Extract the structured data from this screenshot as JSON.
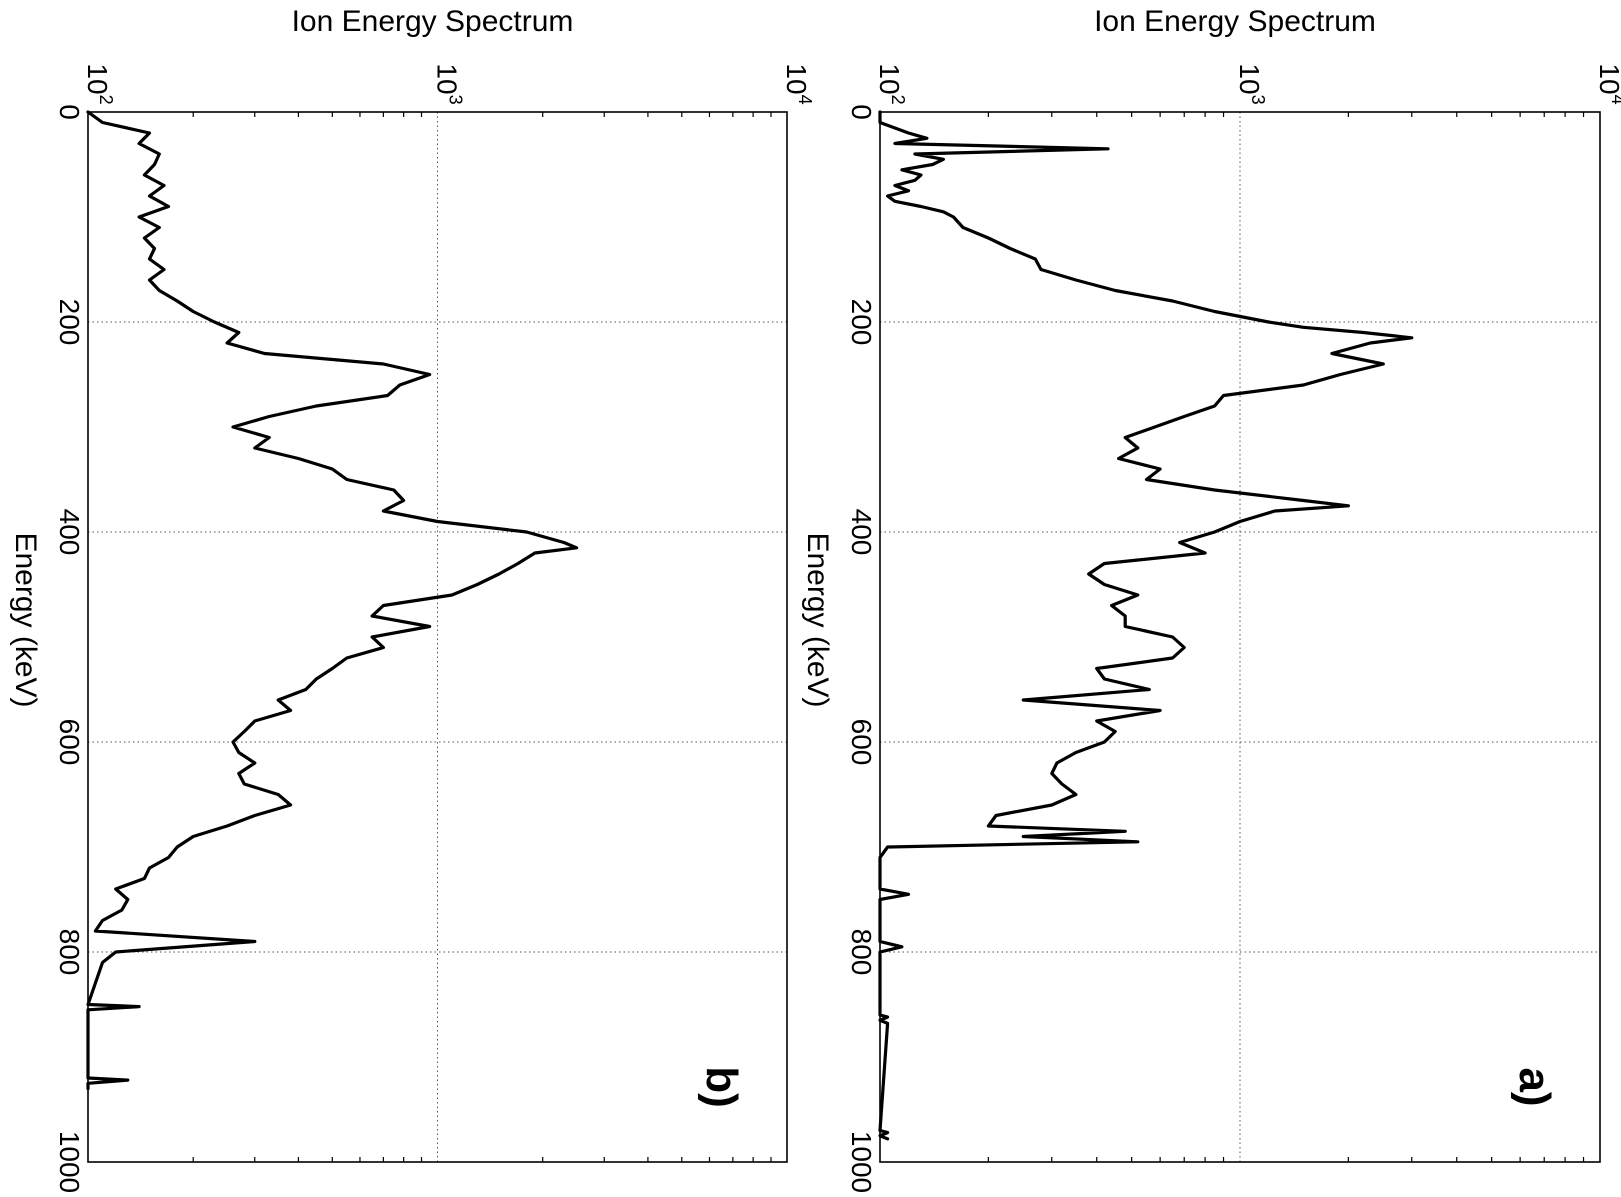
{
  "chart_data": [
    {
      "id": "a",
      "type": "line",
      "title": "Ion Energy Spectrum",
      "xlabel": "Energy (keV)",
      "ylabel": "",
      "panel_label": "a)",
      "xlim": [
        0,
        1000
      ],
      "ylim": [
        100,
        10000
      ],
      "yscale": "log",
      "grid": true,
      "orientation": "rotated 90° clockwise",
      "x_ticks": [
        "0",
        "200",
        "400",
        "600",
        "800",
        "1000"
      ],
      "y_ticks": [
        {
          "base": "10",
          "exp": "2"
        },
        {
          "base": "10",
          "exp": "3"
        },
        {
          "base": "10",
          "exp": "4"
        }
      ],
      "series": [
        {
          "x": [
            0,
            10,
            20,
            25,
            30,
            35,
            40,
            45,
            50,
            55,
            60,
            65,
            70,
            75,
            80,
            85,
            90,
            95,
            100,
            110,
            120,
            130,
            140,
            150,
            160,
            170,
            180,
            190,
            200,
            205,
            210,
            215,
            220,
            230,
            240,
            250,
            260,
            270,
            280,
            290,
            300,
            310,
            320,
            330,
            340,
            350,
            360,
            370,
            375,
            380,
            390,
            400,
            410,
            420,
            430,
            440,
            450,
            460,
            470,
            480,
            490,
            500,
            510,
            520,
            530,
            540,
            550,
            560,
            570,
            580,
            590,
            600,
            610,
            620,
            630,
            640,
            650,
            660,
            670,
            680,
            685,
            690,
            695,
            700,
            710,
            740,
            745,
            750,
            760,
            790,
            795,
            800,
            805,
            810,
            860,
            862,
            865,
            868,
            970,
            972,
            975,
            978
          ],
          "y": [
            100,
            100,
            120,
            135,
            110,
            430,
            125,
            150,
            140,
            115,
            130,
            125,
            110,
            120,
            105,
            110,
            130,
            150,
            160,
            170,
            200,
            230,
            270,
            280,
            350,
            450,
            650,
            850,
            1200,
            1500,
            2200,
            3000,
            2300,
            1800,
            2500,
            1900,
            1500,
            900,
            850,
            700,
            580,
            480,
            520,
            460,
            600,
            550,
            850,
            1500,
            2000,
            1250,
            1000,
            850,
            680,
            800,
            420,
            380,
            420,
            520,
            440,
            480,
            480,
            650,
            700,
            650,
            400,
            420,
            560,
            250,
            600,
            400,
            450,
            420,
            350,
            310,
            300,
            320,
            350,
            300,
            210,
            200,
            480,
            250,
            520,
            105,
            100,
            100,
            120,
            100,
            100,
            100,
            115,
            100,
            100,
            100,
            100,
            105,
            100,
            105,
            100,
            105,
            100,
            105
          ]
        }
      ]
    },
    {
      "id": "b",
      "type": "line",
      "title": "Ion Energy Spectrum",
      "xlabel": "Energy (keV)",
      "ylabel": "",
      "panel_label": "b)",
      "xlim": [
        0,
        1000
      ],
      "ylim": [
        100,
        10000
      ],
      "yscale": "log",
      "grid": true,
      "orientation": "rotated 90° clockwise",
      "x_ticks": [
        "0",
        "200",
        "400",
        "600",
        "800",
        "1000"
      ],
      "y_ticks": [
        {
          "base": "10",
          "exp": "2"
        },
        {
          "base": "10",
          "exp": "3"
        },
        {
          "base": "10",
          "exp": "4"
        }
      ],
      "series": [
        {
          "x": [
            0,
            10,
            20,
            30,
            40,
            50,
            60,
            70,
            80,
            90,
            100,
            110,
            120,
            130,
            140,
            150,
            160,
            170,
            180,
            190,
            200,
            210,
            220,
            230,
            240,
            250,
            260,
            270,
            280,
            290,
            300,
            310,
            320,
            330,
            340,
            350,
            360,
            370,
            380,
            390,
            400,
            410,
            415,
            420,
            430,
            440,
            450,
            460,
            470,
            480,
            490,
            500,
            510,
            520,
            530,
            540,
            550,
            560,
            570,
            580,
            590,
            600,
            610,
            620,
            630,
            640,
            650,
            660,
            670,
            680,
            690,
            700,
            710,
            720,
            730,
            740,
            750,
            760,
            770,
            780,
            790,
            800,
            810,
            850,
            852,
            855,
            920,
            922,
            925,
            930
          ],
          "y": [
            100,
            110,
            150,
            140,
            160,
            155,
            145,
            165,
            150,
            170,
            140,
            160,
            145,
            155,
            150,
            165,
            150,
            160,
            180,
            200,
            230,
            270,
            250,
            320,
            700,
            950,
            780,
            720,
            450,
            330,
            260,
            330,
            300,
            400,
            500,
            550,
            750,
            800,
            700,
            1000,
            1800,
            2300,
            2500,
            1900,
            1700,
            1500,
            1300,
            1100,
            700,
            650,
            950,
            650,
            700,
            550,
            500,
            450,
            420,
            350,
            380,
            300,
            280,
            260,
            270,
            300,
            270,
            280,
            350,
            380,
            300,
            250,
            200,
            180,
            170,
            150,
            145,
            120,
            130,
            125,
            110,
            105,
            300,
            120,
            110,
            100,
            140,
            100,
            100,
            130,
            100,
            100
          ]
        }
      ]
    }
  ]
}
